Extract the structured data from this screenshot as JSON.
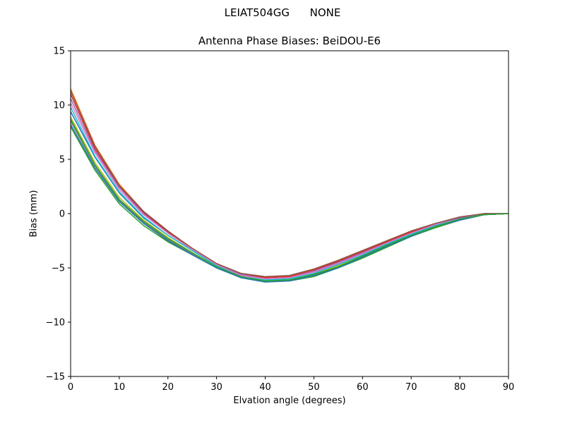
{
  "figure": {
    "suptitle": "LEIAT504GG      NONE"
  },
  "chart_data": {
    "type": "line",
    "title": "Antenna Phase Biases: BeiDOU-E6",
    "xlabel": "Elvation angle (degrees)",
    "ylabel": "Bias (mm)",
    "xlim": [
      0,
      90
    ],
    "ylim": [
      -15,
      15
    ],
    "xticks": [
      0,
      10,
      20,
      30,
      40,
      50,
      60,
      70,
      80,
      90
    ],
    "xtick_labels": [
      "0",
      "10",
      "20",
      "30",
      "40",
      "50",
      "60",
      "70",
      "80",
      "90"
    ],
    "yticks": [
      -15,
      -10,
      -5,
      0,
      5,
      10,
      15
    ],
    "ytick_labels": [
      "−15",
      "−10",
      "−5",
      "0",
      "5",
      "10",
      "15"
    ],
    "grid": false,
    "x": [
      0,
      5,
      10,
      15,
      20,
      25,
      30,
      35,
      40,
      45,
      50,
      55,
      60,
      65,
      70,
      75,
      80,
      85,
      90
    ],
    "series": [
      {
        "color": "#1f77b4",
        "values": [
          9.4,
          5.2,
          1.9,
          -0.4,
          -2.0,
          -3.4,
          -4.8,
          -5.8,
          -6.2,
          -6.1,
          -5.6,
          -4.8,
          -3.8,
          -2.8,
          -1.9,
          -1.1,
          -0.5,
          -0.1,
          0.0
        ]
      },
      {
        "color": "#ff7f0e",
        "values": [
          11.5,
          6.3,
          2.7,
          0.2,
          -1.6,
          -3.2,
          -4.6,
          -5.5,
          -5.8,
          -5.7,
          -5.1,
          -4.3,
          -3.4,
          -2.5,
          -1.6,
          -0.9,
          -0.4,
          0.0,
          0.0
        ]
      },
      {
        "color": "#2ca02c",
        "values": [
          8.0,
          4.0,
          0.9,
          -1.1,
          -2.6,
          -3.8,
          -5.0,
          -5.9,
          -6.3,
          -6.2,
          -5.8,
          -5.0,
          -4.1,
          -3.1,
          -2.1,
          -1.3,
          -0.6,
          -0.1,
          0.0
        ]
      },
      {
        "color": "#d62728",
        "values": [
          11.0,
          6.0,
          2.5,
          0.1,
          -1.7,
          -3.2,
          -4.6,
          -5.6,
          -5.9,
          -5.8,
          -5.2,
          -4.4,
          -3.5,
          -2.6,
          -1.7,
          -1.0,
          -0.4,
          0.0,
          0.0
        ]
      },
      {
        "color": "#9467bd",
        "values": [
          10.6,
          5.8,
          2.4,
          0.0,
          -1.8,
          -3.3,
          -4.7,
          -5.6,
          -6.0,
          -5.9,
          -5.3,
          -4.5,
          -3.6,
          -2.7,
          -1.8,
          -1.0,
          -0.4,
          0.0,
          0.0
        ]
      },
      {
        "color": "#8c564b",
        "values": [
          11.3,
          6.2,
          2.6,
          0.2,
          -1.6,
          -3.2,
          -4.6,
          -5.5,
          -5.8,
          -5.7,
          -5.1,
          -4.3,
          -3.4,
          -2.5,
          -1.6,
          -0.9,
          -0.3,
          0.0,
          0.0
        ]
      },
      {
        "color": "#e377c2",
        "values": [
          10.2,
          5.6,
          2.2,
          -0.1,
          -1.8,
          -3.3,
          -4.7,
          -5.7,
          -6.0,
          -5.9,
          -5.4,
          -4.6,
          -3.7,
          -2.7,
          -1.8,
          -1.0,
          -0.5,
          -0.1,
          0.0
        ]
      },
      {
        "color": "#7f7f7f",
        "values": [
          8.5,
          4.4,
          1.2,
          -0.8,
          -2.4,
          -3.7,
          -4.9,
          -5.9,
          -6.2,
          -6.1,
          -5.7,
          -4.9,
          -4.0,
          -3.0,
          -2.0,
          -1.2,
          -0.6,
          -0.1,
          0.0
        ]
      },
      {
        "color": "#bcbd22",
        "values": [
          8.9,
          4.7,
          1.5,
          -0.6,
          -2.2,
          -3.6,
          -4.9,
          -5.8,
          -6.2,
          -6.1,
          -5.6,
          -4.8,
          -3.9,
          -2.9,
          -2.0,
          -1.2,
          -0.5,
          -0.1,
          0.0
        ]
      },
      {
        "color": "#17becf",
        "values": [
          9.8,
          5.3,
          2.0,
          -0.3,
          -2.0,
          -3.4,
          -4.8,
          -5.8,
          -6.1,
          -6.0,
          -5.5,
          -4.7,
          -3.8,
          -2.8,
          -1.9,
          -1.1,
          -0.5,
          -0.1,
          0.0
        ]
      },
      {
        "color": "#1f77b4",
        "values": [
          8.2,
          4.2,
          1.1,
          -0.9,
          -2.5,
          -3.8,
          -5.0,
          -5.9,
          -6.3,
          -6.2,
          -5.7,
          -5.0,
          -4.0,
          -3.0,
          -2.1,
          -1.2,
          -0.6,
          -0.1,
          0.0
        ]
      },
      {
        "color": "#2ca02c",
        "values": [
          8.7,
          4.5,
          1.3,
          -0.7,
          -2.3,
          -3.6,
          -4.9,
          -5.8,
          -6.2,
          -6.1,
          -5.6,
          -4.9,
          -3.9,
          -2.9,
          -2.0,
          -1.2,
          -0.5,
          -0.1,
          0.0
        ]
      }
    ]
  }
}
